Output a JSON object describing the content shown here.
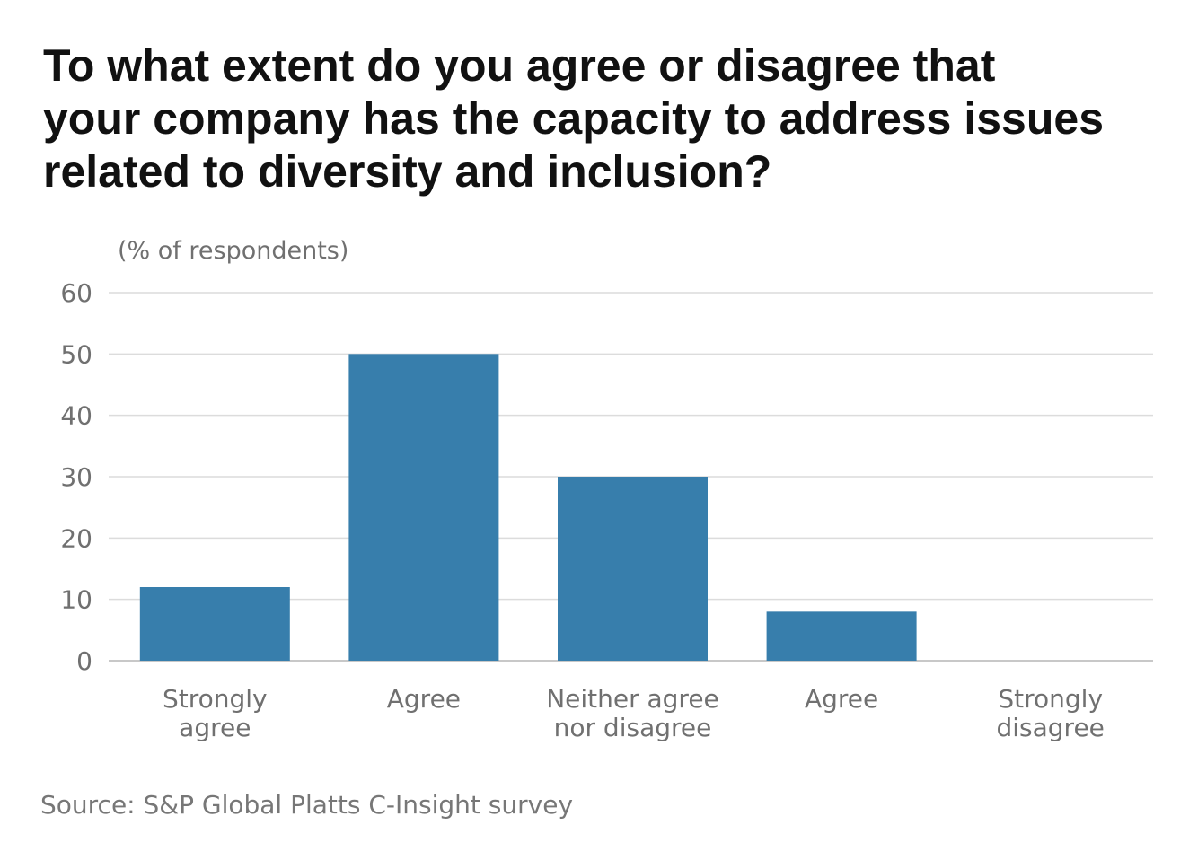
{
  "chart_data": {
    "type": "bar",
    "title_lines": [
      "To what extent do you agree or disagree that",
      "your company has the capacity to address issues",
      "related to diversity and inclusion?"
    ],
    "ylabel": "(% of respondents)",
    "categories": [
      [
        "Strongly",
        "agree"
      ],
      [
        "Agree"
      ],
      [
        "Neither agree",
        "nor disagree"
      ],
      [
        "Agree"
      ],
      [
        "Strongly",
        "disagree"
      ]
    ],
    "values": [
      12,
      50,
      30,
      8,
      0
    ],
    "ylim": [
      0,
      60
    ],
    "yticks": [
      0,
      10,
      20,
      30,
      40,
      50,
      60
    ],
    "grid": true,
    "bar_color": "#377eac",
    "source": "Source: S&P Global Platts C-Insight survey"
  }
}
